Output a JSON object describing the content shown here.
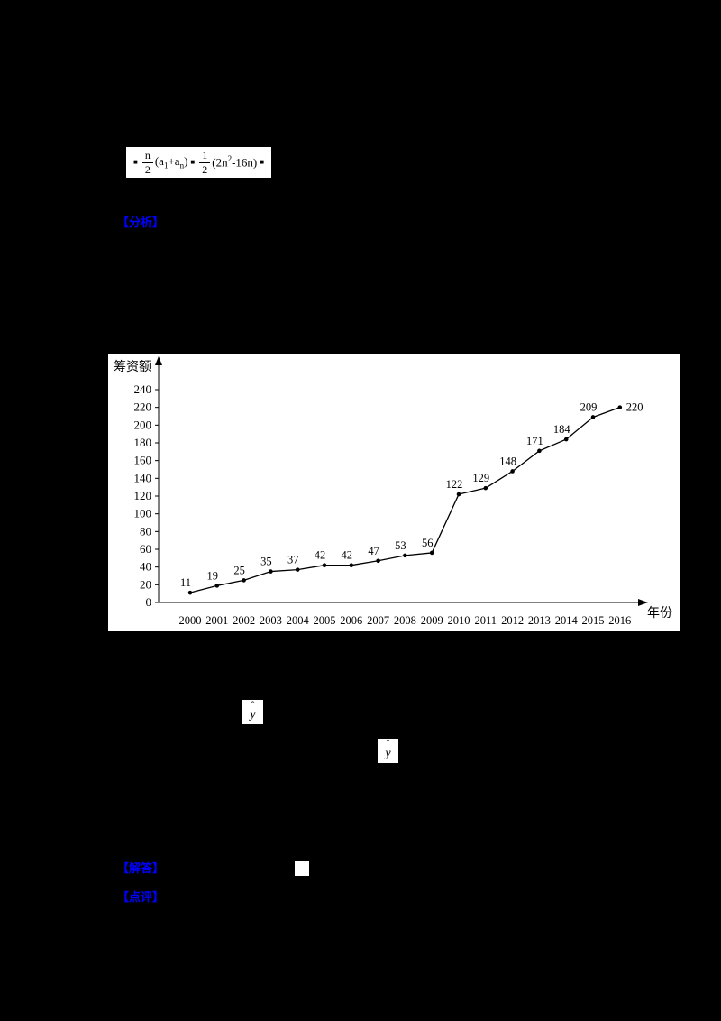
{
  "colors": {
    "canvas": "#000000",
    "paper": "#ffffff",
    "ink": "#000000",
    "accent_blue": "#0000ff"
  },
  "formula": {
    "square": "■",
    "frac1": {
      "num": "n",
      "den": "2"
    },
    "t1a": "(a",
    "t1sub1": "1",
    "t1b": "+a",
    "t1sub2": "n",
    "t1c": ")",
    "frac2": {
      "num": "1",
      "den": "2"
    },
    "t2a": "(2n",
    "t2sup": "2",
    "t2b": "-16n)"
  },
  "markers": {
    "analysis": "【分析】",
    "answer": "【解答】",
    "comment": "【点评】"
  },
  "yhat": {
    "hat": "ˆ",
    "letter": "y"
  },
  "chart_data": {
    "type": "line",
    "title": "",
    "ylabel": "筹资额",
    "xlabel": "年份",
    "categories": [
      "2000",
      "2001",
      "2002",
      "2003",
      "2004",
      "2005",
      "2006",
      "2007",
      "2008",
      "2009",
      "2010",
      "2011",
      "2012",
      "2013",
      "2014",
      "2015",
      "2016"
    ],
    "values": [
      11,
      19,
      25,
      35,
      37,
      42,
      42,
      47,
      53,
      56,
      122,
      129,
      148,
      171,
      184,
      209,
      220
    ],
    "yticks": [
      0,
      20,
      40,
      60,
      80,
      100,
      120,
      140,
      160,
      180,
      200,
      220,
      240
    ],
    "ylim": [
      0,
      240
    ],
    "grid": false,
    "legend": "none",
    "point_labels": true
  }
}
